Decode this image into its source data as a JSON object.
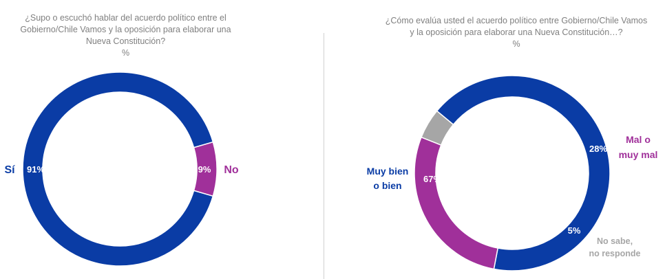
{
  "colors": {
    "blue": "#0a3ca5",
    "purple": "#a0309a",
    "gray": "#a6a6a6"
  },
  "chart_data": [
    {
      "type": "pie",
      "title_lines": [
        "¿Supo o escuchó hablar del acuerdo político entre el",
        "Gobierno/Chile Vamos y la oposición para elaborar una",
        "Nueva Constitución?",
        "%"
      ],
      "slices": [
        {
          "name": "Sí",
          "value": 91,
          "label": "91%",
          "color": "#0a3ca5"
        },
        {
          "name": "No",
          "value": 9,
          "label": "9%",
          "color": "#a0309a"
        }
      ]
    },
    {
      "type": "pie",
      "title_lines": [
        "¿Cómo evalúa usted el acuerdo político entre Gobierno/Chile Vamos",
        "y la oposición para elaborar una Nueva Constitución…?",
        "%"
      ],
      "slices": [
        {
          "name_lines": [
            "Muy bien",
            "o bien"
          ],
          "value": 67,
          "label": "67%",
          "color": "#0a3ca5"
        },
        {
          "name_lines": [
            "Mal o",
            "muy mal"
          ],
          "value": 28,
          "label": "28%",
          "color": "#a0309a"
        },
        {
          "name_lines": [
            "No sabe,",
            "no responde"
          ],
          "value": 5,
          "label": "5%",
          "color": "#a6a6a6"
        }
      ]
    }
  ]
}
